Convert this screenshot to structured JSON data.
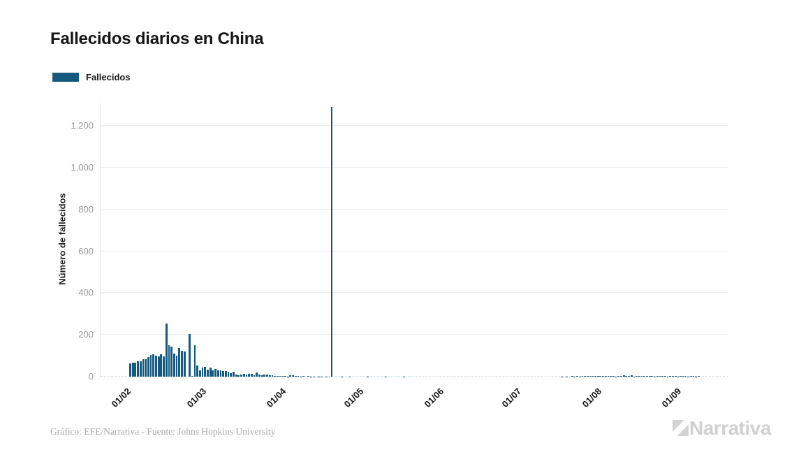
{
  "header": {
    "title": "Fallecidos diarios en China"
  },
  "legend": {
    "label": "Fallecidos",
    "color": "#15597f"
  },
  "chart_data": {
    "type": "bar",
    "title": "Fallecidos diarios en China",
    "series_name": "Fallecidos",
    "ylabel": "Número de fallecidos",
    "bar_color": "#15597f",
    "grid": true,
    "legend_position": "top-left",
    "ylim": [
      0,
      1318
    ],
    "y_ticks": [
      {
        "value": 0,
        "label": "0"
      },
      {
        "value": 200,
        "label": "200"
      },
      {
        "value": 400,
        "label": "400"
      },
      {
        "value": 600,
        "label": "600"
      },
      {
        "value": 800,
        "label": "800"
      },
      {
        "value": 1000,
        "label": "1.000"
      },
      {
        "value": 1200,
        "label": "1.200"
      }
    ],
    "x_ticks": [
      {
        "index": 2,
        "label": "01/02"
      },
      {
        "index": 31,
        "label": "01/03"
      },
      {
        "index": 62,
        "label": "01/04"
      },
      {
        "index": 92,
        "label": "01/05"
      },
      {
        "index": 123,
        "label": "01/06"
      },
      {
        "index": 153,
        "label": "01/07"
      },
      {
        "index": 184,
        "label": "01/08"
      },
      {
        "index": 215,
        "label": "01/09"
      }
    ],
    "start_date": "30/01",
    "peak": {
      "date": "17/04",
      "value": 1290
    },
    "values": [
      64,
      66,
      68,
      73,
      74,
      83,
      83,
      94,
      104,
      107,
      102,
      97,
      108,
      97,
      254,
      152,
      143,
      110,
      100,
      136,
      124,
      120,
      0,
      205,
      2,
      150,
      52,
      29,
      44,
      47,
      35,
      42,
      31,
      38,
      31,
      30,
      28,
      27,
      22,
      17,
      22,
      11,
      7,
      11,
      13,
      10,
      12,
      13,
      8,
      20,
      11,
      7,
      10,
      9,
      7,
      6,
      5,
      5,
      5,
      5,
      2,
      1,
      7,
      6,
      4,
      3,
      1,
      2,
      0,
      2,
      1,
      1,
      0,
      1,
      1,
      0,
      1,
      0,
      1290,
      0,
      0,
      0,
      1,
      0,
      0,
      1,
      0,
      0,
      0,
      0,
      0,
      0,
      1,
      0,
      0,
      0,
      0,
      0,
      0,
      1,
      0,
      0,
      0,
      0,
      0,
      0,
      1,
      0,
      0,
      0,
      0,
      0,
      0,
      0,
      0,
      0,
      0,
      0,
      0,
      0,
      0,
      0,
      0,
      0,
      0,
      0,
      0,
      0,
      0,
      0,
      0,
      0,
      0,
      0,
      0,
      0,
      0,
      0,
      0,
      0,
      0,
      0,
      0,
      0,
      0,
      0,
      0,
      0,
      0,
      0,
      0,
      0,
      0,
      0,
      0,
      0,
      0,
      0,
      0,
      0,
      0,
      0,
      0,
      0,
      0,
      0,
      0,
      1,
      0,
      1,
      0,
      2,
      1,
      2,
      1,
      3,
      2,
      2,
      3,
      2,
      4,
      3,
      2,
      3,
      3,
      2,
      4,
      2,
      1,
      5,
      5,
      6,
      5,
      2,
      6,
      1,
      4,
      4,
      5,
      3,
      5,
      4,
      3,
      1,
      2,
      3,
      4,
      2,
      1,
      2,
      2,
      3,
      1,
      2,
      3,
      2,
      1,
      3,
      4,
      1,
      3
    ]
  },
  "footer": {
    "credit": "Gráfico: EFE/Narrativa - Fuente: Johns Hopkins University",
    "brand": "Narrativa"
  }
}
